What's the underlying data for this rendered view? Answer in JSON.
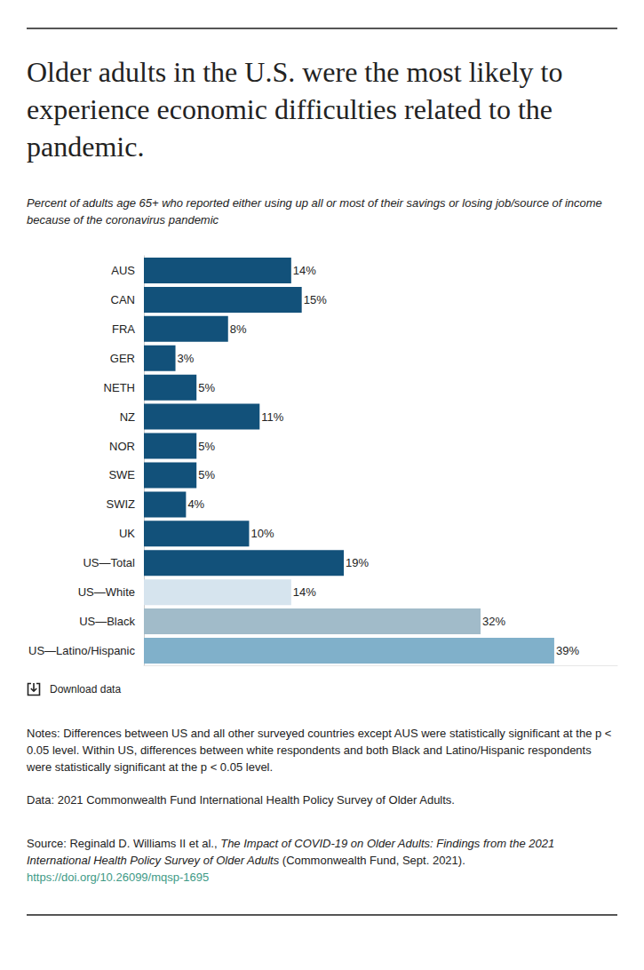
{
  "chart_data": {
    "type": "bar",
    "orientation": "horizontal",
    "title": "Older adults in the U.S. were the most likely to experience economic difficulties related to the pandemic.",
    "subtitle": "Percent of adults age 65+ who reported either using up all or most of their savings or losing job/source of income because of the coronavirus pandemic",
    "categories": [
      "AUS",
      "CAN",
      "FRA",
      "GER",
      "NETH",
      "NZ",
      "NOR",
      "SWE",
      "SWIZ",
      "UK",
      "US—Total",
      "US—White",
      "US—Black",
      "US—Latino/Hispanic"
    ],
    "values": [
      14,
      15,
      8,
      3,
      5,
      11,
      5,
      5,
      4,
      10,
      19,
      14,
      32,
      39
    ],
    "value_labels": [
      "14%",
      "15%",
      "8%",
      "3%",
      "5%",
      "11%",
      "5%",
      "5%",
      "4%",
      "10%",
      "19%",
      "14%",
      "32%",
      "39%"
    ],
    "colors": [
      "#12517a",
      "#12517a",
      "#12517a",
      "#12517a",
      "#12517a",
      "#12517a",
      "#12517a",
      "#12517a",
      "#12517a",
      "#12517a",
      "#12517a",
      "#d6e4ee",
      "#a1bbc9",
      "#80b0ca"
    ],
    "xlim": [
      0,
      45
    ],
    "data_labels": true,
    "tick_labels": "y",
    "grid": false,
    "download": "Download data",
    "notes": "Notes: Differences between US and all other surveyed countries except AUS were statistically significant at the p < 0.05 level. Within US, differences between white respondents and both Black and Latino/Hispanic respondents were statistically significant at the p < 0.05 level.",
    "data_note": "Data: 2021 Commonwealth Fund International Health Policy Survey of Older Adults.",
    "source_prefix": "Source: Reginald D. Williams II et al., ",
    "source_title": "The Impact of COVID-19 on Older Adults: Findings from the 2021 International Health Policy Survey of Older Adults",
    "source_suffix": " (Commonwealth Fund, Sept. 2021). ",
    "source_link": "https://doi.org/10.26099/mqsp-1695"
  }
}
